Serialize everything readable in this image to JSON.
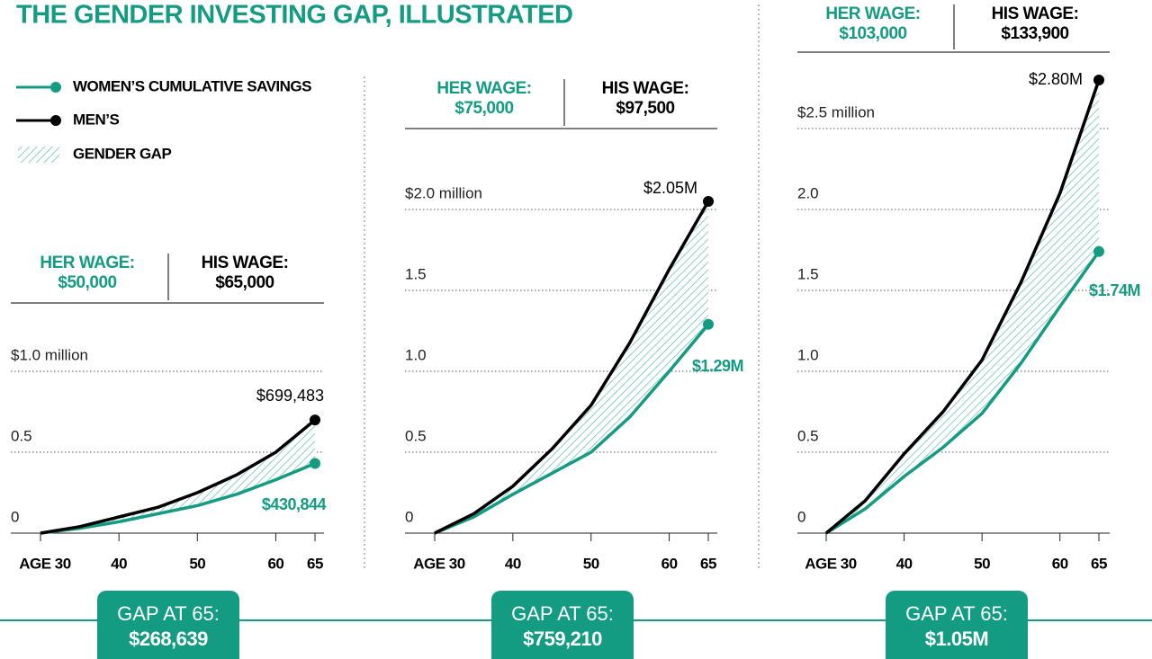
{
  "title": "THE GENDER INVESTING GAP, ILLUSTRATED",
  "legend": [
    {
      "label": "WOMEN’S CUMULATIVE SAVINGS",
      "color": "#149c83"
    },
    {
      "label": "MEN’S",
      "color": "#000000"
    },
    {
      "label": "GENDER GAP",
      "color": "#8fd0c2"
    }
  ],
  "chart_data": [
    {
      "type": "line",
      "her_wage": {
        "label": "HER WAGE:",
        "value": "$50,000"
      },
      "his_wage": {
        "label": "HIS WAGE:",
        "value": "$65,000"
      },
      "x": [
        30,
        35,
        40,
        45,
        50,
        55,
        60,
        65
      ],
      "series": [
        {
          "color": "#149c83",
          "values": [
            0,
            0.03,
            0.07,
            0.12,
            0.17,
            0.24,
            0.33,
            0.430844
          ],
          "value_labels": [
            null,
            null,
            null,
            null,
            null,
            null,
            null,
            "$430,844"
          ]
        },
        {
          "color": "#000000",
          "values": [
            0,
            0.04,
            0.1,
            0.16,
            0.25,
            0.36,
            0.5,
            0.699483
          ],
          "value_labels": [
            null,
            null,
            null,
            null,
            null,
            null,
            null,
            "$699,483"
          ]
        }
      ],
      "xlim": [
        30,
        65
      ],
      "xticks": [
        {
          "value": 30,
          "label": "AGE 30"
        },
        40,
        50,
        60,
        65
      ],
      "ylim": [
        0,
        1
      ],
      "yticks": [
        0,
        0.5,
        {
          "value": 1,
          "label": "$1.0 million"
        }
      ],
      "gap": {
        "label": "GAP AT 65:",
        "value": "$268,639"
      }
    },
    {
      "type": "line",
      "her_wage": {
        "label": "HER WAGE:",
        "value": "$75,000"
      },
      "his_wage": {
        "label": "HIS WAGE:",
        "value": "$97,500"
      },
      "x": [
        30,
        35,
        40,
        45,
        50,
        55,
        60,
        65
      ],
      "series": [
        {
          "color": "#149c83",
          "values": [
            0,
            0.1,
            0.24,
            0.37,
            0.5,
            0.72,
            1.0,
            1.29
          ],
          "value_labels": [
            null,
            null,
            null,
            null,
            null,
            null,
            null,
            "$1.29M"
          ]
        },
        {
          "color": "#000000",
          "values": [
            0,
            0.12,
            0.29,
            0.52,
            0.79,
            1.18,
            1.63,
            2.05
          ],
          "value_labels": [
            null,
            null,
            null,
            null,
            null,
            null,
            null,
            "$2.05M"
          ]
        }
      ],
      "xlim": [
        30,
        65
      ],
      "xticks": [
        {
          "value": 30,
          "label": "AGE 30"
        },
        40,
        50,
        60,
        65
      ],
      "ylim": [
        0,
        2
      ],
      "yticks": [
        0,
        0.5,
        {
          "value": 1,
          "label": "1.0"
        },
        1.5,
        {
          "value": 2,
          "label": "$2.0 million"
        }
      ],
      "gap": {
        "label": "GAP AT 65:",
        "value": "$759,210"
      }
    },
    {
      "type": "line",
      "her_wage": {
        "label": "HER WAGE:",
        "value": "$103,000"
      },
      "his_wage": {
        "label": "HIS WAGE:",
        "value": "$133,900"
      },
      "x": [
        30,
        35,
        40,
        45,
        50,
        55,
        60,
        65
      ],
      "series": [
        {
          "color": "#149c83",
          "values": [
            0,
            0.15,
            0.35,
            0.53,
            0.74,
            1.05,
            1.4,
            1.74
          ],
          "value_labels": [
            null,
            null,
            null,
            null,
            null,
            null,
            null,
            "$1.74M"
          ]
        },
        {
          "color": "#000000",
          "values": [
            0,
            0.2,
            0.49,
            0.75,
            1.07,
            1.55,
            2.1,
            2.8
          ],
          "value_labels": [
            null,
            null,
            null,
            null,
            null,
            null,
            null,
            "$2.80M"
          ]
        }
      ],
      "xlim": [
        30,
        65
      ],
      "xticks": [
        {
          "value": 30,
          "label": "AGE 30"
        },
        40,
        50,
        60,
        65
      ],
      "ylim": [
        0,
        2.5
      ],
      "yticks": [
        0,
        0.5,
        {
          "value": 1,
          "label": "1.0"
        },
        {
          "value": 2,
          "label": "2.0"
        },
        1.5,
        {
          "value": 2.5,
          "label": "$2.5 million"
        }
      ],
      "gap": {
        "label": "GAP AT 65:",
        "value": "$1.05M"
      }
    }
  ]
}
